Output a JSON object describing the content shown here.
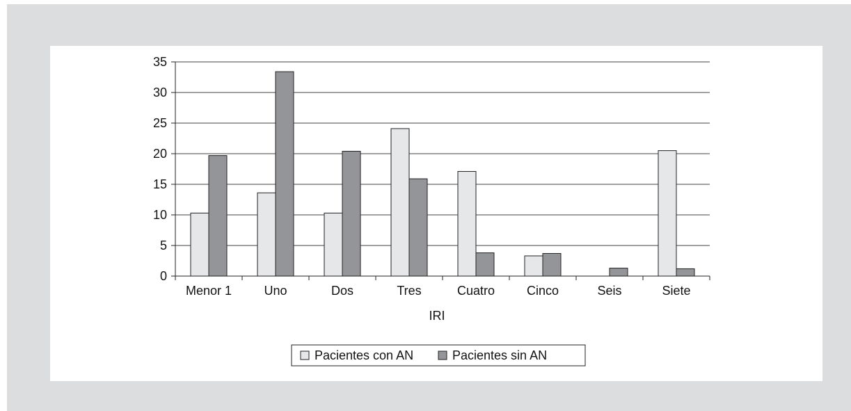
{
  "chart_data": {
    "type": "bar",
    "title": "",
    "xlabel": "IRI",
    "ylabel": "",
    "ylim": [
      0,
      35
    ],
    "yticks": [
      0,
      5,
      10,
      15,
      20,
      25,
      30,
      35
    ],
    "grid": true,
    "legend_position": "bottom",
    "categories": [
      "Menor 1",
      "Uno",
      "Dos",
      "Tres",
      "Cuatro",
      "Cinco",
      "Seis",
      "Siete"
    ],
    "series": [
      {
        "name": "Pacientes con AN",
        "color": "#e6e7e9",
        "values": [
          10.3,
          13.6,
          10.3,
          24.1,
          17.1,
          3.3,
          0,
          20.5
        ]
      },
      {
        "name": "Pacientes sin AN",
        "color": "#939598",
        "values": [
          19.7,
          33.4,
          20.4,
          15.9,
          3.8,
          3.7,
          1.3,
          1.2
        ]
      }
    ]
  }
}
